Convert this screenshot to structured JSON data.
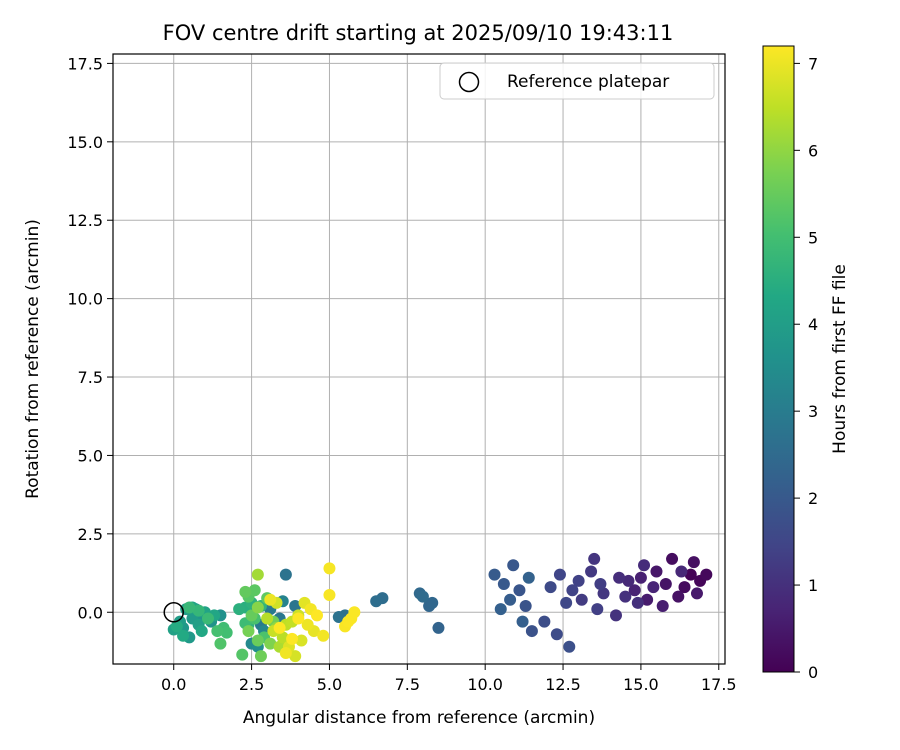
{
  "chart_data": {
    "type": "scatter",
    "title": "FOV centre drift starting at 2025/09/10 19:43:11",
    "xlabel": "Angular distance from reference (arcmin)",
    "ylabel": "Rotation from reference (arcmin)",
    "xlim": [
      -1.95,
      17.7
    ],
    "ylim": [
      -1.65,
      17.8
    ],
    "xticks": [
      0.0,
      2.5,
      5.0,
      7.5,
      10.0,
      12.5,
      15.0,
      17.5
    ],
    "xtick_labels": [
      "0.0",
      "2.5",
      "5.0",
      "7.5",
      "10.0",
      "12.5",
      "15.0",
      "17.5"
    ],
    "yticks": [
      0.0,
      2.5,
      5.0,
      7.5,
      10.0,
      12.5,
      15.0,
      17.5
    ],
    "ytick_labels": [
      "0.0",
      "2.5",
      "5.0",
      "7.5",
      "10.0",
      "12.5",
      "15.0",
      "17.5"
    ],
    "grid": true,
    "legend": {
      "position": "top-right",
      "entries": [
        {
          "label": "Reference platepar",
          "marker": "open-circle"
        }
      ]
    },
    "reference_point": {
      "x": 0.0,
      "y": 0.0
    },
    "colorbar": {
      "label": "Hours from first FF file",
      "colormap": "viridis",
      "range": [
        0,
        7.2
      ],
      "ticks": [
        0,
        1,
        2,
        3,
        4,
        5,
        6,
        7
      ],
      "tick_labels": [
        "0",
        "1",
        "2",
        "3",
        "4",
        "5",
        "6",
        "7"
      ]
    },
    "points": [
      {
        "x": 16.6,
        "y": 1.2,
        "h": 0.05
      },
      {
        "x": 16.9,
        "y": 1.0,
        "h": 0.1
      },
      {
        "x": 17.1,
        "y": 1.2,
        "h": 0.15
      },
      {
        "x": 16.4,
        "y": 0.8,
        "h": 0.2
      },
      {
        "x": 16.0,
        "y": 1.7,
        "h": 0.25
      },
      {
        "x": 16.7,
        "y": 1.6,
        "h": 0.3
      },
      {
        "x": 16.2,
        "y": 0.5,
        "h": 0.35
      },
      {
        "x": 15.8,
        "y": 0.9,
        "h": 0.4
      },
      {
        "x": 15.5,
        "y": 1.3,
        "h": 0.45
      },
      {
        "x": 16.8,
        "y": 0.6,
        "h": 0.5
      },
      {
        "x": 15.2,
        "y": 0.4,
        "h": 0.55
      },
      {
        "x": 15.7,
        "y": 0.2,
        "h": 0.6
      },
      {
        "x": 15.0,
        "y": 1.1,
        "h": 0.65
      },
      {
        "x": 14.8,
        "y": 0.7,
        "h": 0.7
      },
      {
        "x": 15.4,
        "y": 0.8,
        "h": 0.75
      },
      {
        "x": 16.3,
        "y": 1.3,
        "h": 0.8
      },
      {
        "x": 14.6,
        "y": 1.0,
        "h": 0.85
      },
      {
        "x": 15.1,
        "y": 1.5,
        "h": 0.9
      },
      {
        "x": 14.3,
        "y": 1.1,
        "h": 0.95
      },
      {
        "x": 14.9,
        "y": 0.3,
        "h": 1.0
      },
      {
        "x": 14.5,
        "y": 0.5,
        "h": 1.02
      },
      {
        "x": 14.2,
        "y": -0.1,
        "h": 1.05
      },
      {
        "x": 13.5,
        "y": 1.7,
        "h": 1.1
      },
      {
        "x": 13.8,
        "y": 0.6,
        "h": 1.15
      },
      {
        "x": 13.4,
        "y": 1.3,
        "h": 1.2
      },
      {
        "x": 13.1,
        "y": 0.4,
        "h": 1.25
      },
      {
        "x": 13.7,
        "y": 0.9,
        "h": 1.3
      },
      {
        "x": 13.6,
        "y": 0.1,
        "h": 1.35
      },
      {
        "x": 13.0,
        "y": 1.0,
        "h": 1.4
      },
      {
        "x": 12.8,
        "y": 0.7,
        "h": 1.45
      },
      {
        "x": 12.4,
        "y": 1.2,
        "h": 1.5
      },
      {
        "x": 12.6,
        "y": 0.3,
        "h": 1.55
      },
      {
        "x": 12.1,
        "y": 0.8,
        "h": 1.6
      },
      {
        "x": 12.3,
        "y": -0.7,
        "h": 1.65
      },
      {
        "x": 11.9,
        "y": -0.3,
        "h": 1.7
      },
      {
        "x": 12.7,
        "y": -1.1,
        "h": 1.75
      },
      {
        "x": 11.5,
        "y": -0.6,
        "h": 1.8
      },
      {
        "x": 11.3,
        "y": 0.2,
        "h": 1.85
      },
      {
        "x": 11.1,
        "y": 0.7,
        "h": 1.9
      },
      {
        "x": 10.9,
        "y": 1.5,
        "h": 1.95
      },
      {
        "x": 10.6,
        "y": 0.9,
        "h": 2.0
      },
      {
        "x": 10.3,
        "y": 1.2,
        "h": 2.05
      },
      {
        "x": 10.8,
        "y": 0.4,
        "h": 2.1
      },
      {
        "x": 11.2,
        "y": -0.3,
        "h": 2.15
      },
      {
        "x": 10.5,
        "y": 0.1,
        "h": 2.2
      },
      {
        "x": 11.4,
        "y": 1.1,
        "h": 2.25
      },
      {
        "x": 8.5,
        "y": -0.5,
        "h": 2.3
      },
      {
        "x": 8.2,
        "y": 0.2,
        "h": 2.35
      },
      {
        "x": 8.3,
        "y": 0.3,
        "h": 2.4
      },
      {
        "x": 7.9,
        "y": 0.6,
        "h": 2.45
      },
      {
        "x": 8.0,
        "y": 0.5,
        "h": 2.5
      },
      {
        "x": 6.7,
        "y": 0.45,
        "h": 2.55
      },
      {
        "x": 6.5,
        "y": 0.35,
        "h": 2.6
      },
      {
        "x": 5.5,
        "y": -0.1,
        "h": 2.65
      },
      {
        "x": 5.3,
        "y": -0.15,
        "h": 2.7
      },
      {
        "x": 3.6,
        "y": 1.2,
        "h": 2.75
      },
      {
        "x": 3.9,
        "y": 0.2,
        "h": 2.8
      },
      {
        "x": 3.4,
        "y": -0.2,
        "h": 2.85
      },
      {
        "x": 3.1,
        "y": 0.1,
        "h": 2.9
      },
      {
        "x": 2.8,
        "y": -0.4,
        "h": 2.95
      },
      {
        "x": 3.0,
        "y": 0.3,
        "h": 3.0
      },
      {
        "x": 2.6,
        "y": 0.15,
        "h": 3.1
      },
      {
        "x": 3.5,
        "y": 0.35,
        "h": 3.2
      },
      {
        "x": 2.9,
        "y": -0.6,
        "h": 3.3
      },
      {
        "x": 2.5,
        "y": -1.0,
        "h": 3.4
      },
      {
        "x": 2.7,
        "y": -1.1,
        "h": 3.5
      },
      {
        "x": 1.5,
        "y": -0.1,
        "h": 3.6
      },
      {
        "x": 1.2,
        "y": -0.3,
        "h": 3.65
      },
      {
        "x": 0.9,
        "y": -0.2,
        "h": 3.7
      },
      {
        "x": 0.7,
        "y": 0.1,
        "h": 3.75
      },
      {
        "x": 0.3,
        "y": -0.5,
        "h": 3.8
      },
      {
        "x": 0.5,
        "y": -0.8,
        "h": 3.85
      },
      {
        "x": 0.6,
        "y": -0.2,
        "h": 3.9
      },
      {
        "x": 0.2,
        "y": -0.3,
        "h": 3.95
      },
      {
        "x": 0.4,
        "y": 0.1,
        "h": 4.0
      },
      {
        "x": 0.8,
        "y": -0.4,
        "h": 4.05
      },
      {
        "x": 0.0,
        "y": -0.55,
        "h": 4.1
      },
      {
        "x": 1.0,
        "y": 0.0,
        "h": 4.15
      },
      {
        "x": 0.6,
        "y": 0.15,
        "h": 4.2
      },
      {
        "x": 1.3,
        "y": -0.1,
        "h": 4.25
      },
      {
        "x": 0.9,
        "y": -0.6,
        "h": 4.3
      },
      {
        "x": 0.3,
        "y": -0.75,
        "h": 4.35
      },
      {
        "x": 0.1,
        "y": -0.45,
        "h": 4.4
      },
      {
        "x": 2.3,
        "y": 0.15,
        "h": 4.5
      },
      {
        "x": 2.1,
        "y": 0.1,
        "h": 4.55
      },
      {
        "x": 2.5,
        "y": 0.3,
        "h": 4.6
      },
      {
        "x": 2.4,
        "y": -0.4,
        "h": 4.65
      },
      {
        "x": 2.8,
        "y": 0.2,
        "h": 4.7
      },
      {
        "x": 0.8,
        "y": 0.05,
        "h": 4.75
      },
      {
        "x": 0.5,
        "y": 0.15,
        "h": 4.8
      },
      {
        "x": 1.1,
        "y": -0.2,
        "h": 4.85
      },
      {
        "x": 2.3,
        "y": -0.35,
        "h": 4.9
      },
      {
        "x": 1.6,
        "y": -0.5,
        "h": 4.95
      },
      {
        "x": 1.7,
        "y": -0.65,
        "h": 5.0
      },
      {
        "x": 1.4,
        "y": -0.6,
        "h": 5.05
      },
      {
        "x": 2.6,
        "y": -0.2,
        "h": 5.1
      },
      {
        "x": 2.9,
        "y": -0.8,
        "h": 5.15
      },
      {
        "x": 1.5,
        "y": -1.0,
        "h": 5.2
      },
      {
        "x": 2.2,
        "y": -1.35,
        "h": 5.25
      },
      {
        "x": 2.4,
        "y": 0.5,
        "h": 5.3
      },
      {
        "x": 2.6,
        "y": 0.7,
        "h": 5.35
      },
      {
        "x": 3.0,
        "y": 0.45,
        "h": 5.4
      },
      {
        "x": 2.3,
        "y": 0.65,
        "h": 5.45
      },
      {
        "x": 2.5,
        "y": -0.1,
        "h": 5.5
      },
      {
        "x": 2.7,
        "y": -0.9,
        "h": 5.55
      },
      {
        "x": 2.8,
        "y": -1.4,
        "h": 5.6
      },
      {
        "x": 3.2,
        "y": -0.3,
        "h": 5.65
      },
      {
        "x": 2.4,
        "y": -0.6,
        "h": 5.7
      },
      {
        "x": 3.1,
        "y": -1.0,
        "h": 5.8
      },
      {
        "x": 2.7,
        "y": 0.15,
        "h": 5.9
      },
      {
        "x": 3.3,
        "y": -0.5,
        "h": 6.0
      },
      {
        "x": 2.7,
        "y": 1.2,
        "h": 6.2
      },
      {
        "x": 3.4,
        "y": -1.1,
        "h": 6.3
      },
      {
        "x": 3.0,
        "y": -0.2,
        "h": 6.4
      },
      {
        "x": 3.5,
        "y": -0.8,
        "h": 6.45
      },
      {
        "x": 3.6,
        "y": -0.4,
        "h": 6.5
      },
      {
        "x": 3.8,
        "y": -0.3,
        "h": 6.55
      },
      {
        "x": 3.2,
        "y": -0.6,
        "h": 6.6
      },
      {
        "x": 4.0,
        "y": -0.1,
        "h": 6.65
      },
      {
        "x": 3.3,
        "y": 0.3,
        "h": 6.7
      },
      {
        "x": 3.9,
        "y": -1.4,
        "h": 6.75
      },
      {
        "x": 4.1,
        "y": -0.9,
        "h": 6.8
      },
      {
        "x": 3.7,
        "y": -1.1,
        "h": 6.85
      },
      {
        "x": 4.2,
        "y": 0.3,
        "h": 6.9
      },
      {
        "x": 4.5,
        "y": -0.6,
        "h": 6.95
      },
      {
        "x": 3.1,
        "y": 0.4,
        "h": 7.0
      },
      {
        "x": 4.3,
        "y": -0.4,
        "h": 7.02
      },
      {
        "x": 3.6,
        "y": -1.3,
        "h": 7.05
      },
      {
        "x": 4.8,
        "y": -0.75,
        "h": 7.08
      },
      {
        "x": 4.4,
        "y": 0.1,
        "h": 7.1
      },
      {
        "x": 5.0,
        "y": 1.4,
        "h": 7.12
      },
      {
        "x": 5.0,
        "y": 0.55,
        "h": 7.14
      },
      {
        "x": 5.5,
        "y": -0.45,
        "h": 7.15
      },
      {
        "x": 5.7,
        "y": -0.2,
        "h": 7.16
      },
      {
        "x": 5.8,
        "y": 0.0,
        "h": 7.17
      },
      {
        "x": 5.6,
        "y": -0.3,
        "h": 7.18
      },
      {
        "x": 4.0,
        "y": -0.2,
        "h": 7.19
      },
      {
        "x": 3.8,
        "y": -0.85,
        "h": 7.19
      },
      {
        "x": 3.4,
        "y": -0.5,
        "h": 7.2
      },
      {
        "x": 4.6,
        "y": -0.1,
        "h": 7.2
      }
    ]
  }
}
